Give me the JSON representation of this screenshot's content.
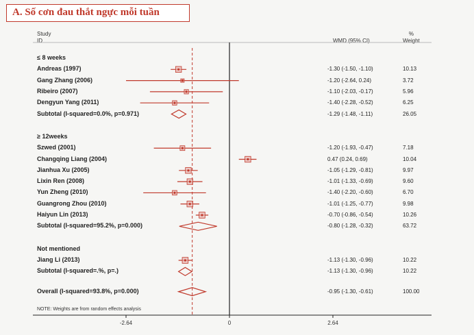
{
  "title": "A.  Số cơn đau thắt ngực mỗi tuần",
  "header": {
    "study_line1": "Study",
    "study_line2": "ID",
    "effect": "WMD (95% CI)",
    "weight_line1": "%",
    "weight_line2": "Weight"
  },
  "note": "NOTE: Weights are from random effects analysis",
  "chart_data": {
    "type": "forest",
    "xlabel": "",
    "ylabel": "",
    "xticks": [
      "-2.64",
      "0",
      "2.64"
    ],
    "xlim": [
      -2.64,
      2.64
    ],
    "null_line": 0,
    "overall_line": -0.95,
    "groups": [
      {
        "label": "≤ 8 weeks",
        "studies": [
          {
            "name": "Andreas (1997)",
            "est": -1.3,
            "lo": -1.5,
            "hi": -1.1,
            "ci": "-1.30 (-1.50, -1.10)",
            "weight": "10.13"
          },
          {
            "name": "Gang Zhang (2006)",
            "est": -1.2,
            "lo": -2.64,
            "hi": 0.24,
            "ci": "-1.20 (-2.64, 0.24)",
            "weight": "3.72"
          },
          {
            "name": "Ribeiro (2007)",
            "est": -1.1,
            "lo": -2.03,
            "hi": -0.17,
            "ci": "-1.10 (-2.03, -0.17)",
            "weight": "5.96"
          },
          {
            "name": "Dengyun Yang (2011)",
            "est": -1.4,
            "lo": -2.28,
            "hi": -0.52,
            "ci": "-1.40 (-2.28, -0.52)",
            "weight": "6.25"
          }
        ],
        "subtotal": {
          "label": "Subtotal (I-squared=0.0%, p=0.971)",
          "est": -1.29,
          "lo": -1.48,
          "hi": -1.11,
          "ci": "-1.29 (-1.48, -1.11)",
          "weight": "26.05"
        }
      },
      {
        "label": "≥ 12weeks",
        "studies": [
          {
            "name": "Szwed (2001)",
            "est": -1.2,
            "lo": -1.93,
            "hi": -0.47,
            "ci": "-1.20 (-1.93, -0.47)",
            "weight": "7.18"
          },
          {
            "name": "Changqing Liang (2004)",
            "est": 0.47,
            "lo": 0.24,
            "hi": 0.69,
            "ci": "0.47 (0.24, 0.69)",
            "weight": "10.04"
          },
          {
            "name": "Jianhua Xu (2005)",
            "est": -1.05,
            "lo": -1.29,
            "hi": -0.81,
            "ci": "-1.05 (-1.29, -0.81)",
            "weight": "9.97"
          },
          {
            "name": "Lixin Ren (2008)",
            "est": -1.01,
            "lo": -1.33,
            "hi": -0.69,
            "ci": "-1.01 (-1.33, -0.69)",
            "weight": "9.60"
          },
          {
            "name": "Yun Zheng (2010)",
            "est": -1.4,
            "lo": -2.2,
            "hi": -0.6,
            "ci": "-1.40 (-2.20, -0.60)",
            "weight": "6.70"
          },
          {
            "name": "Guangrong Zhou (2010)",
            "est": -1.01,
            "lo": -1.25,
            "hi": -0.77,
            "ci": "-1.01 (-1.25, -0.77)",
            "weight": "9.98"
          },
          {
            "name": "Haiyun Lin (2013)",
            "est": -0.7,
            "lo": -0.86,
            "hi": -0.54,
            "ci": "-0.70 (-0.86, -0.54)",
            "weight": "10.26"
          }
        ],
        "subtotal": {
          "label": "Subtotal (I-squared=95.2%, p=0.000)",
          "est": -0.8,
          "lo": -1.28,
          "hi": -0.32,
          "ci": "-0.80 (-1.28, -0.32)",
          "weight": "63.72"
        }
      },
      {
        "label": "Not mentioned",
        "studies": [
          {
            "name": "Jiang Li (2013)",
            "est": -1.13,
            "lo": -1.3,
            "hi": -0.96,
            "ci": "-1.13 (-1.30, -0.96)",
            "weight": "10.22"
          }
        ],
        "subtotal": {
          "label": "Subtotal (I-squared=.%, p=.)",
          "est": -1.13,
          "lo": -1.3,
          "hi": -0.96,
          "ci": "-1.13 (-1.30, -0.96)",
          "weight": "10.22"
        }
      }
    ],
    "overall": {
      "label": "Overall (I-squared=93.8%, p=0.000)",
      "est": -0.95,
      "lo": -1.3,
      "hi": -0.61,
      "ci": "-0.95 (-1.30, -0.61)",
      "weight": "100.00"
    },
    "colors": {
      "marker": "#c0392b",
      "ci_line": "#c0392b",
      "axis": "#222222",
      "overall_line": "#c0392b"
    }
  }
}
